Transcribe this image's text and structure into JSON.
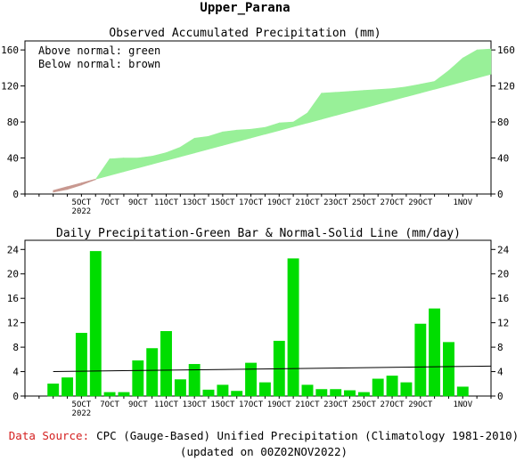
{
  "title": "Upper_Parana",
  "footer": {
    "source_label": "Data Source:",
    "source_text": "CPC (Gauge-Based) Unified Precipitation (Climatology 1981-2010)",
    "updated": "(updated on 00Z02NOV2022)"
  },
  "colors": {
    "green": "#00dd00",
    "light_green": "#98f098",
    "brown": "#c89890",
    "source_red": "#d42020"
  },
  "chart_data": [
    {
      "type": "area",
      "title": "Observed Accumulated Precipitation (mm)",
      "annotations": [
        "Above normal: green",
        "Below normal: brown"
      ],
      "ylim": [
        0,
        170
      ],
      "yticks": [
        0,
        40,
        80,
        120,
        160
      ],
      "xlim": [
        1,
        34
      ],
      "xtick_labels": [
        {
          "day": 5,
          "label": "5OCT",
          "sub": "2022"
        },
        {
          "day": 7,
          "label": "7OCT"
        },
        {
          "day": 9,
          "label": "9OCT"
        },
        {
          "day": 11,
          "label": "11OCT"
        },
        {
          "day": 13,
          "label": "13OCT"
        },
        {
          "day": 15,
          "label": "15OCT"
        },
        {
          "day": 17,
          "label": "17OCT"
        },
        {
          "day": 19,
          "label": "19OCT"
        },
        {
          "day": 21,
          "label": "21OCT"
        },
        {
          "day": 23,
          "label": "23OCT"
        },
        {
          "day": 25,
          "label": "25OCT"
        },
        {
          "day": 27,
          "label": "27OCT"
        },
        {
          "day": 29,
          "label": "29OCT"
        },
        {
          "day": 32,
          "label": "1NOV"
        }
      ],
      "series": [
        {
          "key": "observed",
          "values": [
            {
              "day": 3,
              "value": 2
            },
            {
              "day": 4,
              "value": 5
            },
            {
              "day": 5,
              "value": 10
            },
            {
              "day": 6,
              "value": 16
            },
            {
              "day": 7,
              "value": 39
            },
            {
              "day": 8,
              "value": 40
            },
            {
              "day": 9,
              "value": 40
            },
            {
              "day": 10,
              "value": 42
            },
            {
              "day": 11,
              "value": 46
            },
            {
              "day": 12,
              "value": 52
            },
            {
              "day": 13,
              "value": 62
            },
            {
              "day": 14,
              "value": 64
            },
            {
              "day": 15,
              "value": 69
            },
            {
              "day": 16,
              "value": 71
            },
            {
              "day": 17,
              "value": 72
            },
            {
              "day": 18,
              "value": 74
            },
            {
              "day": 19,
              "value": 79
            },
            {
              "day": 20,
              "value": 80
            },
            {
              "day": 21,
              "value": 90
            },
            {
              "day": 22,
              "value": 112
            },
            {
              "day": 23,
              "value": 113
            },
            {
              "day": 24,
              "value": 114
            },
            {
              "day": 25,
              "value": 115
            },
            {
              "day": 26,
              "value": 116
            },
            {
              "day": 27,
              "value": 117
            },
            {
              "day": 28,
              "value": 119
            },
            {
              "day": 29,
              "value": 122
            },
            {
              "day": 30,
              "value": 125
            },
            {
              "day": 31,
              "value": 137
            },
            {
              "day": 32,
              "value": 151
            },
            {
              "day": 33,
              "value": 160
            },
            {
              "day": 34,
              "value": 161
            }
          ]
        },
        {
          "key": "normal",
          "values": [
            {
              "day": 3,
              "value": 4
            },
            {
              "day": 34,
              "value": 133
            }
          ]
        }
      ]
    },
    {
      "type": "bar",
      "title": "Daily Precipitation-Green Bar & Normal-Solid Line (mm/day)",
      "ylim": [
        0,
        25.5
      ],
      "yticks": [
        0,
        4,
        8,
        12,
        16,
        20,
        24
      ],
      "xlim": [
        1,
        34
      ],
      "xtick_labels": [
        {
          "day": 5,
          "label": "5OCT",
          "sub": "2022"
        },
        {
          "day": 7,
          "label": "7OCT"
        },
        {
          "day": 9,
          "label": "9OCT"
        },
        {
          "day": 11,
          "label": "11OCT"
        },
        {
          "day": 13,
          "label": "13OCT"
        },
        {
          "day": 15,
          "label": "15OCT"
        },
        {
          "day": 17,
          "label": "17OCT"
        },
        {
          "day": 19,
          "label": "19OCT"
        },
        {
          "day": 21,
          "label": "21OCT"
        },
        {
          "day": 23,
          "label": "23OCT"
        },
        {
          "day": 25,
          "label": "25OCT"
        },
        {
          "day": 27,
          "label": "27OCT"
        },
        {
          "day": 29,
          "label": "29OCT"
        },
        {
          "day": 32,
          "label": "1NOV"
        }
      ],
      "series": [
        {
          "key": "daily",
          "values": [
            {
              "day": 3,
              "value": 2.0
            },
            {
              "day": 4,
              "value": 3.0
            },
            {
              "day": 5,
              "value": 10.3
            },
            {
              "day": 6,
              "value": 23.7
            },
            {
              "day": 7,
              "value": 0.6
            },
            {
              "day": 8,
              "value": 0.6
            },
            {
              "day": 9,
              "value": 5.8
            },
            {
              "day": 10,
              "value": 7.8
            },
            {
              "day": 11,
              "value": 10.6
            },
            {
              "day": 12,
              "value": 2.7
            },
            {
              "day": 13,
              "value": 5.2
            },
            {
              "day": 14,
              "value": 1.0
            },
            {
              "day": 15,
              "value": 1.8
            },
            {
              "day": 16,
              "value": 0.8
            },
            {
              "day": 17,
              "value": 5.4
            },
            {
              "day": 18,
              "value": 2.2
            },
            {
              "day": 19,
              "value": 9.0
            },
            {
              "day": 20,
              "value": 22.5
            },
            {
              "day": 21,
              "value": 1.8
            },
            {
              "day": 22,
              "value": 1.1
            },
            {
              "day": 23,
              "value": 1.1
            },
            {
              "day": 24,
              "value": 0.9
            },
            {
              "day": 25,
              "value": 0.6
            },
            {
              "day": 26,
              "value": 2.8
            },
            {
              "day": 27,
              "value": 3.3
            },
            {
              "day": 28,
              "value": 2.2
            },
            {
              "day": 29,
              "value": 11.8
            },
            {
              "day": 30,
              "value": 14.3
            },
            {
              "day": 31,
              "value": 8.8
            },
            {
              "day": 32,
              "value": 1.5
            }
          ]
        },
        {
          "key": "normal",
          "values": [
            {
              "day": 3,
              "value": 4.0
            },
            {
              "day": 34,
              "value": 4.9
            }
          ]
        }
      ]
    }
  ]
}
